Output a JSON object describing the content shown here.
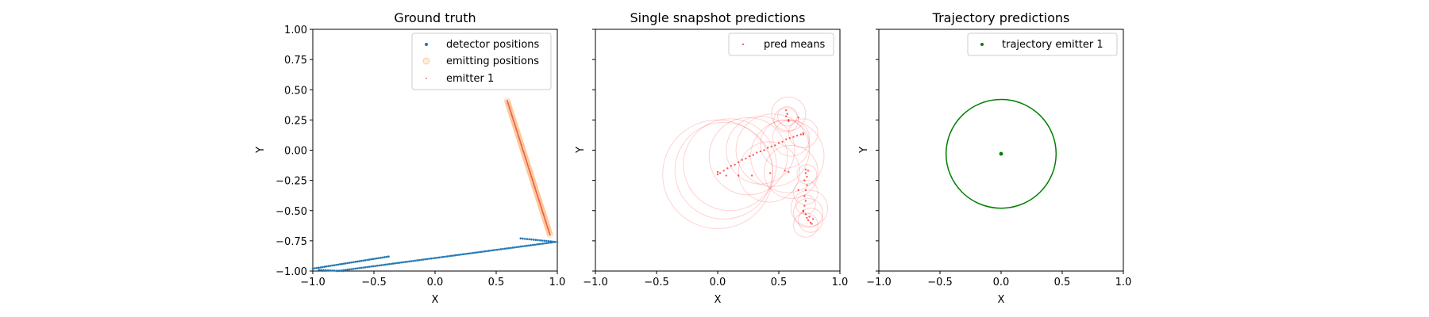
{
  "chart_data": [
    {
      "type": "scatter",
      "title": "Ground truth",
      "xlabel": "X",
      "ylabel": "Y",
      "xlim": [
        -1.0,
        1.0
      ],
      "ylim": [
        -1.0,
        1.0
      ],
      "xticks": [
        "−1.0",
        "−0.5",
        "0.0",
        "0.5",
        "1.0"
      ],
      "yticks": [
        "−1.00",
        "−0.75",
        "−0.50",
        "−0.25",
        "0.00",
        "0.25",
        "0.50",
        "0.75",
        "1.00"
      ],
      "legend_position": "top-right",
      "series": [
        {
          "name": "detector positions",
          "color": "#1f77b4",
          "marker": "dot",
          "segments": [
            {
              "from": [
                -1.0,
                -0.98
              ],
              "to": [
                -0.38,
                -0.88
              ],
              "n": 40
            },
            {
              "from": [
                -0.95,
                -0.99
              ],
              "to": [
                -0.75,
                -1.0
              ],
              "n": 12
            },
            {
              "from": [
                -0.8,
                -1.0
              ],
              "to": [
                0.98,
                -0.76
              ],
              "n": 110
            },
            {
              "from": [
                0.7,
                -0.73
              ],
              "to": [
                1.0,
                -0.76
              ],
              "n": 18
            }
          ]
        },
        {
          "name": "emitting positions",
          "color": "#ff7f0e",
          "marker": "ring",
          "segments": [
            {
              "from": [
                0.59,
                0.41
              ],
              "to": [
                0.94,
                -0.7
              ],
              "n": 90
            }
          ]
        },
        {
          "name": "emitter 1",
          "color": "#d62728",
          "marker": "dot",
          "segments": [
            {
              "from": [
                0.59,
                0.41
              ],
              "to": [
                0.94,
                -0.7
              ],
              "n": 90
            }
          ]
        }
      ]
    },
    {
      "type": "scatter",
      "title": "Single snapshot predictions",
      "xlabel": "X",
      "ylabel": "Y",
      "xlim": [
        -1.0,
        1.0
      ],
      "ylim": [
        -1.0,
        1.0
      ],
      "xticks": [
        "−1.0",
        "−0.5",
        "0.0",
        "0.5",
        "1.0"
      ],
      "legend_position": "top-right",
      "series": [
        {
          "name": "pred means",
          "color": "#ff0000",
          "points": [
            [
              0.0,
              -0.2
            ],
            [
              0.0,
              -0.18
            ],
            [
              0.02,
              -0.19
            ],
            [
              0.05,
              -0.17
            ],
            [
              0.08,
              -0.15
            ],
            [
              0.11,
              -0.13
            ],
            [
              0.14,
              -0.12
            ],
            [
              0.17,
              -0.1
            ],
            [
              0.2,
              -0.08
            ],
            [
              0.23,
              -0.07
            ],
            [
              0.26,
              -0.05
            ],
            [
              0.29,
              -0.04
            ],
            [
              0.32,
              -0.02
            ],
            [
              0.35,
              -0.01
            ],
            [
              0.38,
              0.0
            ],
            [
              0.41,
              0.02
            ],
            [
              0.44,
              0.03
            ],
            [
              0.47,
              0.04
            ],
            [
              0.5,
              0.06
            ],
            [
              0.53,
              0.07
            ],
            [
              0.56,
              0.09
            ],
            [
              0.59,
              0.1
            ],
            [
              0.62,
              0.11
            ],
            [
              0.65,
              0.12
            ],
            [
              0.68,
              0.13
            ],
            [
              0.7,
              0.14
            ],
            [
              0.7,
              0.13
            ],
            [
              0.56,
              0.33
            ],
            [
              0.57,
              0.3
            ],
            [
              0.56,
              0.28
            ],
            [
              0.58,
              0.25
            ],
            [
              0.58,
              0.24
            ],
            [
              0.66,
              0.27
            ],
            [
              0.07,
              -0.21
            ],
            [
              0.17,
              -0.21
            ],
            [
              0.28,
              -0.21
            ],
            [
              0.43,
              -0.19
            ],
            [
              0.55,
              -0.17
            ],
            [
              0.58,
              -0.18
            ],
            [
              0.72,
              -0.16
            ],
            [
              0.74,
              -0.17
            ],
            [
              0.72,
              -0.19
            ],
            [
              0.73,
              -0.22
            ],
            [
              0.71,
              -0.25
            ],
            [
              0.73,
              -0.29
            ],
            [
              0.72,
              -0.33
            ],
            [
              0.71,
              -0.38
            ],
            [
              0.72,
              -0.42
            ],
            [
              0.71,
              -0.46
            ],
            [
              0.7,
              -0.5
            ],
            [
              0.72,
              -0.53
            ],
            [
              0.73,
              -0.56
            ],
            [
              0.74,
              -0.58
            ],
            [
              0.76,
              -0.6
            ],
            [
              0.75,
              -0.55
            ],
            [
              0.77,
              -0.61
            ],
            [
              0.78,
              -0.57
            ],
            [
              0.7,
              -0.51
            ],
            [
              0.66,
              -0.33
            ]
          ],
          "circles": [
            [
              0.0,
              -0.2,
              0.45
            ],
            [
              0.05,
              -0.17,
              0.4
            ],
            [
              0.1,
              -0.12,
              0.38
            ],
            [
              0.25,
              -0.05,
              0.32
            ],
            [
              0.35,
              0.0,
              0.28
            ],
            [
              0.45,
              0.0,
              0.3
            ],
            [
              0.55,
              0.05,
              0.2
            ],
            [
              0.6,
              0.1,
              0.15
            ],
            [
              0.7,
              0.14,
              0.12
            ],
            [
              0.56,
              0.25,
              0.1
            ],
            [
              0.57,
              0.28,
              0.08
            ],
            [
              0.58,
              0.3,
              0.14
            ],
            [
              0.42,
              -0.18,
              0.25
            ],
            [
              0.6,
              -0.18,
              0.22
            ],
            [
              0.57,
              -0.05,
              0.3
            ],
            [
              0.73,
              -0.2,
              0.08
            ],
            [
              0.72,
              -0.35,
              0.1
            ],
            [
              0.72,
              -0.45,
              0.08
            ],
            [
              0.74,
              -0.52,
              0.12
            ],
            [
              0.76,
              -0.58,
              0.1
            ],
            [
              0.72,
              -0.62,
              0.1
            ],
            [
              0.75,
              -0.48,
              0.15
            ]
          ]
        }
      ]
    },
    {
      "type": "scatter",
      "title": "Trajectory predictions",
      "xlabel": "X",
      "ylabel": "Y",
      "xlim": [
        -1.0,
        1.0
      ],
      "ylim": [
        -1.0,
        1.0
      ],
      "xticks": [
        "−1.0",
        "−0.5",
        "0.0",
        "0.5",
        "1.0"
      ],
      "legend_position": "top-right",
      "series": [
        {
          "name": "trajectory emitter 1",
          "color": "#008000",
          "points": [
            [
              0.0,
              -0.03
            ]
          ],
          "circles": [
            [
              0.0,
              -0.03,
              0.45
            ]
          ]
        }
      ]
    }
  ]
}
